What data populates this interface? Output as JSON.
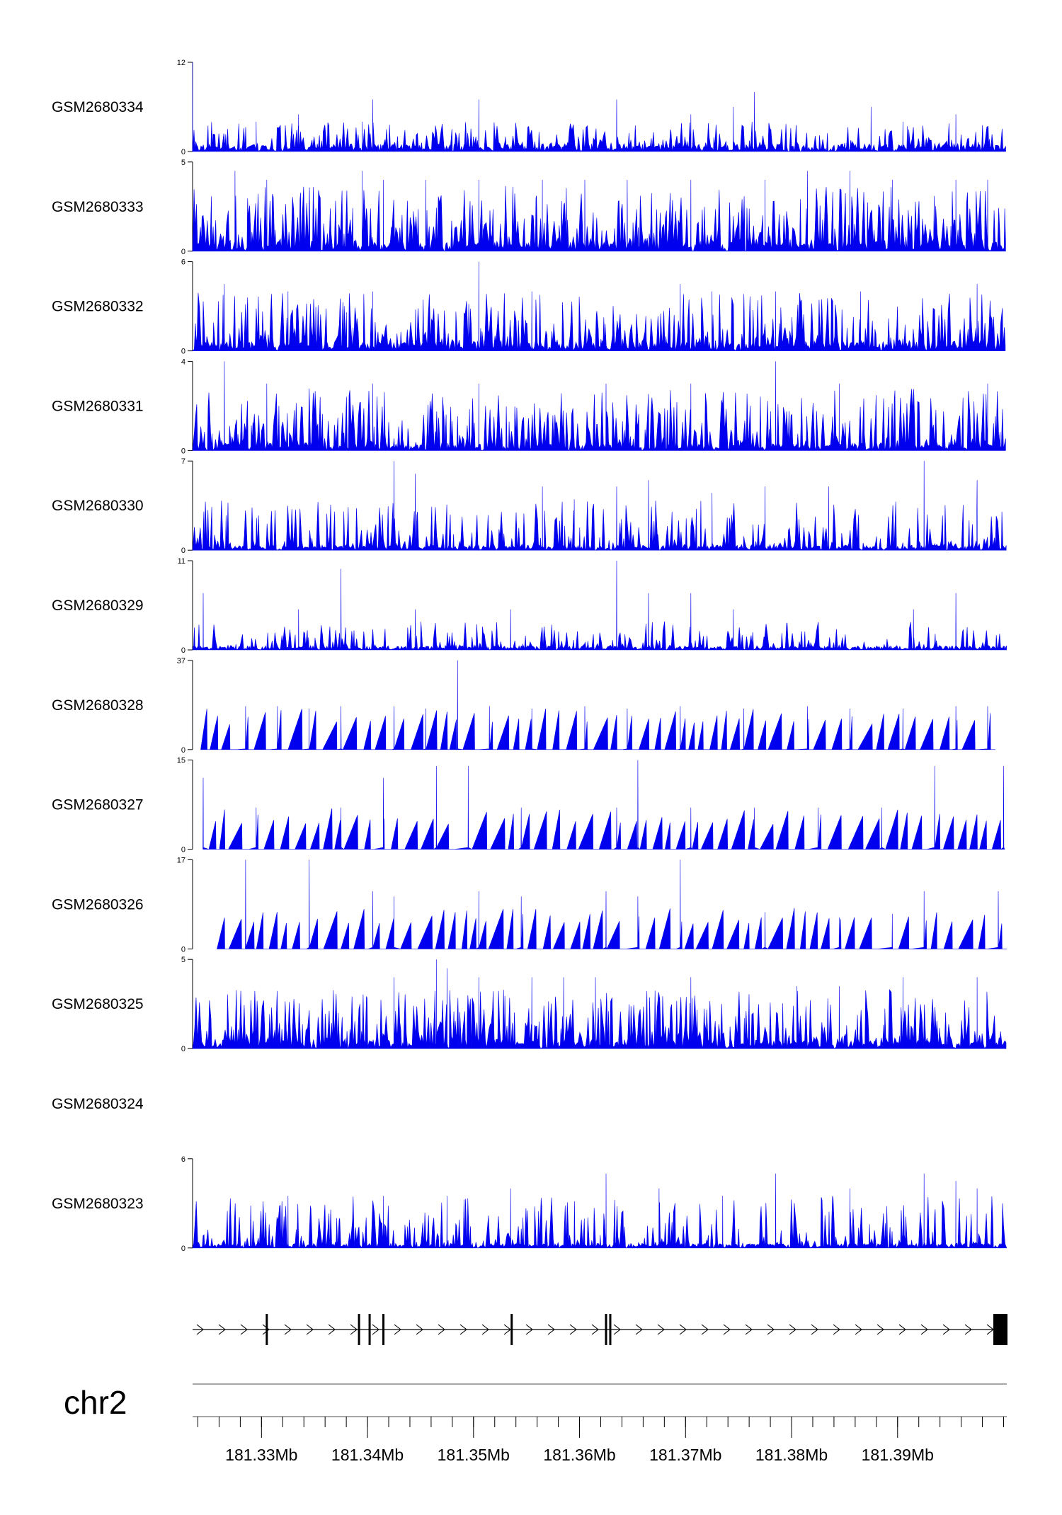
{
  "colors": {
    "signal": "#0000ee",
    "axis": "#000000",
    "ideogram": "#888888"
  },
  "chart_data": {
    "type": "area",
    "chromosome": "chr2",
    "x_unit": "Mb",
    "xlim": [
      181.3235,
      181.4003
    ],
    "x_ticks": [
      181.33,
      181.34,
      181.35,
      181.36,
      181.37,
      181.38,
      181.39
    ],
    "x_tick_labels": [
      "181.33Mb",
      "181.34Mb",
      "181.35Mb",
      "181.36Mb",
      "181.37Mb",
      "181.38Mb",
      "181.39Mb"
    ],
    "tracks": [
      {
        "name": "GSM2680334",
        "ylim": [
          0,
          12
        ],
        "peaks": [
          [
            181.3235,
            12
          ],
          [
            181.3295,
            4
          ],
          [
            181.3335,
            5
          ],
          [
            181.3395,
            4
          ],
          [
            181.3405,
            7
          ],
          [
            181.3505,
            7
          ],
          [
            181.3635,
            7
          ],
          [
            181.3705,
            5
          ],
          [
            181.3745,
            6
          ],
          [
            181.3765,
            8
          ],
          [
            181.3875,
            6
          ],
          [
            181.3905,
            4
          ],
          [
            181.3955,
            5
          ]
        ],
        "density": 0.3,
        "baseline": 1.0,
        "noise": 3.0
      },
      {
        "name": "GSM2680333",
        "ylim": [
          0,
          5
        ],
        "peaks": [
          [
            181.3275,
            4.5
          ],
          [
            181.3305,
            4
          ],
          [
            181.3395,
            4.5
          ],
          [
            181.3415,
            4
          ],
          [
            181.3455,
            4
          ],
          [
            181.3505,
            4
          ],
          [
            181.3565,
            4
          ],
          [
            181.3605,
            4
          ],
          [
            181.3645,
            4
          ],
          [
            181.3705,
            4
          ],
          [
            181.3775,
            4
          ],
          [
            181.3815,
            4.5
          ],
          [
            181.3855,
            4.5
          ],
          [
            181.3895,
            4
          ],
          [
            181.3955,
            4
          ],
          [
            181.3985,
            4
          ]
        ],
        "density": 0.55,
        "baseline": 0.5,
        "noise": 3.2
      },
      {
        "name": "GSM2680332",
        "ylim": [
          0,
          6
        ],
        "peaks": [
          [
            181.3265,
            4.5
          ],
          [
            181.3325,
            4
          ],
          [
            181.3405,
            4
          ],
          [
            181.3505,
            6
          ],
          [
            181.3555,
            4
          ],
          [
            181.3695,
            4.5
          ],
          [
            181.3725,
            4
          ],
          [
            181.3785,
            4
          ],
          [
            181.3865,
            4
          ],
          [
            181.3975,
            4.5
          ]
        ],
        "density": 0.45,
        "baseline": 0.6,
        "noise": 3.3
      },
      {
        "name": "GSM2680331",
        "ylim": [
          0,
          4
        ],
        "peaks": [
          [
            181.3265,
            4
          ],
          [
            181.3305,
            3
          ],
          [
            181.3405,
            3
          ],
          [
            181.3505,
            3
          ],
          [
            181.3625,
            3
          ],
          [
            181.3705,
            3
          ],
          [
            181.3785,
            4
          ],
          [
            181.3845,
            3
          ],
          [
            181.3985,
            3
          ]
        ],
        "density": 0.5,
        "baseline": 0.3,
        "noise": 2.5
      },
      {
        "name": "GSM2680330",
        "ylim": [
          0,
          7
        ],
        "peaks": [
          [
            181.3425,
            7
          ],
          [
            181.3445,
            6
          ],
          [
            181.3565,
            5
          ],
          [
            181.3595,
            4
          ],
          [
            181.3635,
            5
          ],
          [
            181.3665,
            5.5
          ],
          [
            181.3725,
            4.5
          ],
          [
            181.3775,
            5
          ],
          [
            181.3835,
            5
          ],
          [
            181.3925,
            7
          ],
          [
            181.3975,
            5.5
          ]
        ],
        "density": 0.4,
        "baseline": 0.4,
        "noise": 3.5
      },
      {
        "name": "GSM2680329",
        "ylim": [
          0,
          11
        ],
        "peaks": [
          [
            181.3245,
            7
          ],
          [
            181.3335,
            5
          ],
          [
            181.3375,
            10
          ],
          [
            181.3445,
            5
          ],
          [
            181.3535,
            5
          ],
          [
            181.3635,
            11
          ],
          [
            181.3665,
            7
          ],
          [
            181.3705,
            7
          ],
          [
            181.3745,
            5
          ],
          [
            181.3915,
            5
          ],
          [
            181.3955,
            7
          ]
        ],
        "density": 0.3,
        "baseline": 0.5,
        "noise": 3.0
      },
      {
        "name": "GSM2680328",
        "ylim": [
          0,
          37
        ],
        "peaks": [
          [
            181.3285,
            18
          ],
          [
            181.3315,
            18
          ],
          [
            181.3345,
            17
          ],
          [
            181.3375,
            18
          ],
          [
            181.3425,
            18
          ],
          [
            181.3455,
            17
          ],
          [
            181.3485,
            37
          ],
          [
            181.3515,
            18
          ],
          [
            181.3555,
            17
          ],
          [
            181.3605,
            18
          ],
          [
            181.3645,
            17
          ],
          [
            181.3695,
            18
          ],
          [
            181.3755,
            17
          ],
          [
            181.3815,
            18
          ],
          [
            181.3855,
            17
          ],
          [
            181.3905,
            17
          ],
          [
            181.3955,
            18
          ],
          [
            181.3985,
            18
          ]
        ],
        "density": 0.05,
        "baseline": 0,
        "noise": 3.0
      },
      {
        "name": "GSM2680327",
        "ylim": [
          0,
          15
        ],
        "peaks": [
          [
            181.3245,
            12
          ],
          [
            181.3295,
            7
          ],
          [
            181.3375,
            7
          ],
          [
            181.3415,
            12
          ],
          [
            181.3465,
            14
          ],
          [
            181.3495,
            14
          ],
          [
            181.3545,
            7
          ],
          [
            181.3635,
            7
          ],
          [
            181.3655,
            15
          ],
          [
            181.3705,
            7
          ],
          [
            181.3765,
            7
          ],
          [
            181.3825,
            7
          ],
          [
            181.3885,
            7
          ],
          [
            181.3935,
            14
          ],
          [
            181.4,
            14
          ]
        ],
        "density": 0.08,
        "baseline": 0,
        "noise": 3.0
      },
      {
        "name": "GSM2680326",
        "ylim": [
          0,
          17
        ],
        "peaks": [
          [
            181.3285,
            17
          ],
          [
            181.3345,
            17
          ],
          [
            181.3405,
            11
          ],
          [
            181.3425,
            10
          ],
          [
            181.3505,
            11
          ],
          [
            181.3545,
            10
          ],
          [
            181.3625,
            11
          ],
          [
            181.3655,
            10
          ],
          [
            181.3695,
            17
          ],
          [
            181.3775,
            7
          ],
          [
            181.3845,
            6
          ],
          [
            181.3895,
            6
          ],
          [
            181.3925,
            11
          ],
          [
            181.3995,
            11
          ]
        ],
        "density": 0.1,
        "baseline": 0,
        "noise": 3.0
      },
      {
        "name": "GSM2680325",
        "ylim": [
          0,
          5
        ],
        "peaks": [
          [
            181.3425,
            4
          ],
          [
            181.3465,
            5
          ],
          [
            181.3475,
            4.5
          ],
          [
            181.3505,
            4
          ],
          [
            181.3555,
            4
          ],
          [
            181.3585,
            4
          ],
          [
            181.3615,
            4
          ],
          [
            181.3705,
            4
          ],
          [
            181.3805,
            3.5
          ],
          [
            181.3845,
            3.5
          ],
          [
            181.3905,
            4
          ],
          [
            181.3975,
            4
          ]
        ],
        "density": 0.55,
        "baseline": 0.5,
        "noise": 2.8
      },
      {
        "name": "GSM2680324",
        "ylim": null,
        "peaks": [],
        "density": 0,
        "baseline": 0,
        "noise": 0
      },
      {
        "name": "GSM2680323",
        "ylim": [
          0,
          6
        ],
        "peaks": [
          [
            181.3325,
            3.5
          ],
          [
            181.3415,
            3.5
          ],
          [
            181.3475,
            3.5
          ],
          [
            181.3535,
            4
          ],
          [
            181.3625,
            5
          ],
          [
            181.3675,
            4
          ],
          [
            181.3735,
            3.5
          ],
          [
            181.3785,
            5
          ],
          [
            181.3855,
            4
          ],
          [
            181.3925,
            5
          ],
          [
            181.3955,
            4.5
          ],
          [
            181.3975,
            4
          ]
        ],
        "density": 0.4,
        "baseline": 0.3,
        "noise": 3.2
      }
    ],
    "gene_model": {
      "strand": "+",
      "exons_mb": [
        181.3305,
        181.3392,
        181.3402,
        181.3415,
        181.3536,
        181.3625,
        181.3629,
        181.3996
      ]
    }
  }
}
